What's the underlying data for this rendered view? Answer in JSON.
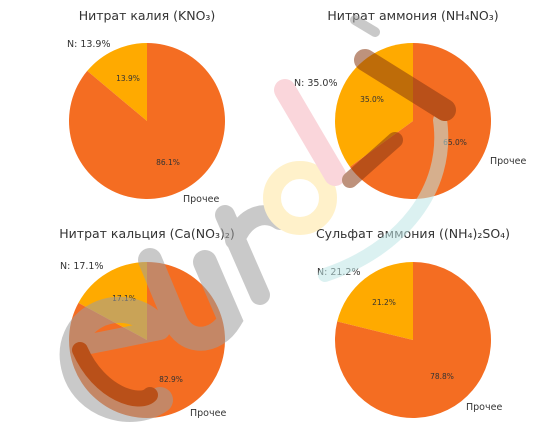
{
  "colors": {
    "nitrogen": "#FFAA00",
    "other": "#F46D22",
    "text": "#333333",
    "watermark_gray": "#9E9E9E",
    "watermark_pink": "#F6B6BE",
    "watermark_yellow": "#FFE7A0",
    "watermark_teal": "#BFE6E6",
    "watermark_brown": "#8A3A12"
  },
  "watermark": {
    "text": "eurol"
  },
  "chart_data": [
    {
      "type": "pie",
      "title": "Нитрат калия (KNO₃)",
      "labels": [
        "N: 13.9%",
        "Прочее"
      ],
      "values": [
        13.9,
        86.1
      ],
      "value_labels": [
        "13.9%",
        "86.1%"
      ]
    },
    {
      "type": "pie",
      "title": "Нитрат аммония (NH₄NO₃)",
      "labels": [
        "N: 35.0%",
        "Прочее"
      ],
      "values": [
        35.0,
        65.0
      ],
      "value_labels": [
        "35.0%",
        "65.0%"
      ]
    },
    {
      "type": "pie",
      "title": "Нитрат кальция (Ca(NO₃)₂)",
      "labels": [
        "N: 17.1%",
        "Прочее"
      ],
      "values": [
        17.1,
        82.9
      ],
      "value_labels": [
        "17.1%",
        "82.9%"
      ]
    },
    {
      "type": "pie",
      "title": "Сульфат аммония ((NH₄)₂SO₄)",
      "labels": [
        "N: 21.2%",
        "Прочее"
      ],
      "values": [
        21.2,
        78.8
      ],
      "value_labels": [
        "21.2%",
        "78.8%"
      ]
    }
  ]
}
